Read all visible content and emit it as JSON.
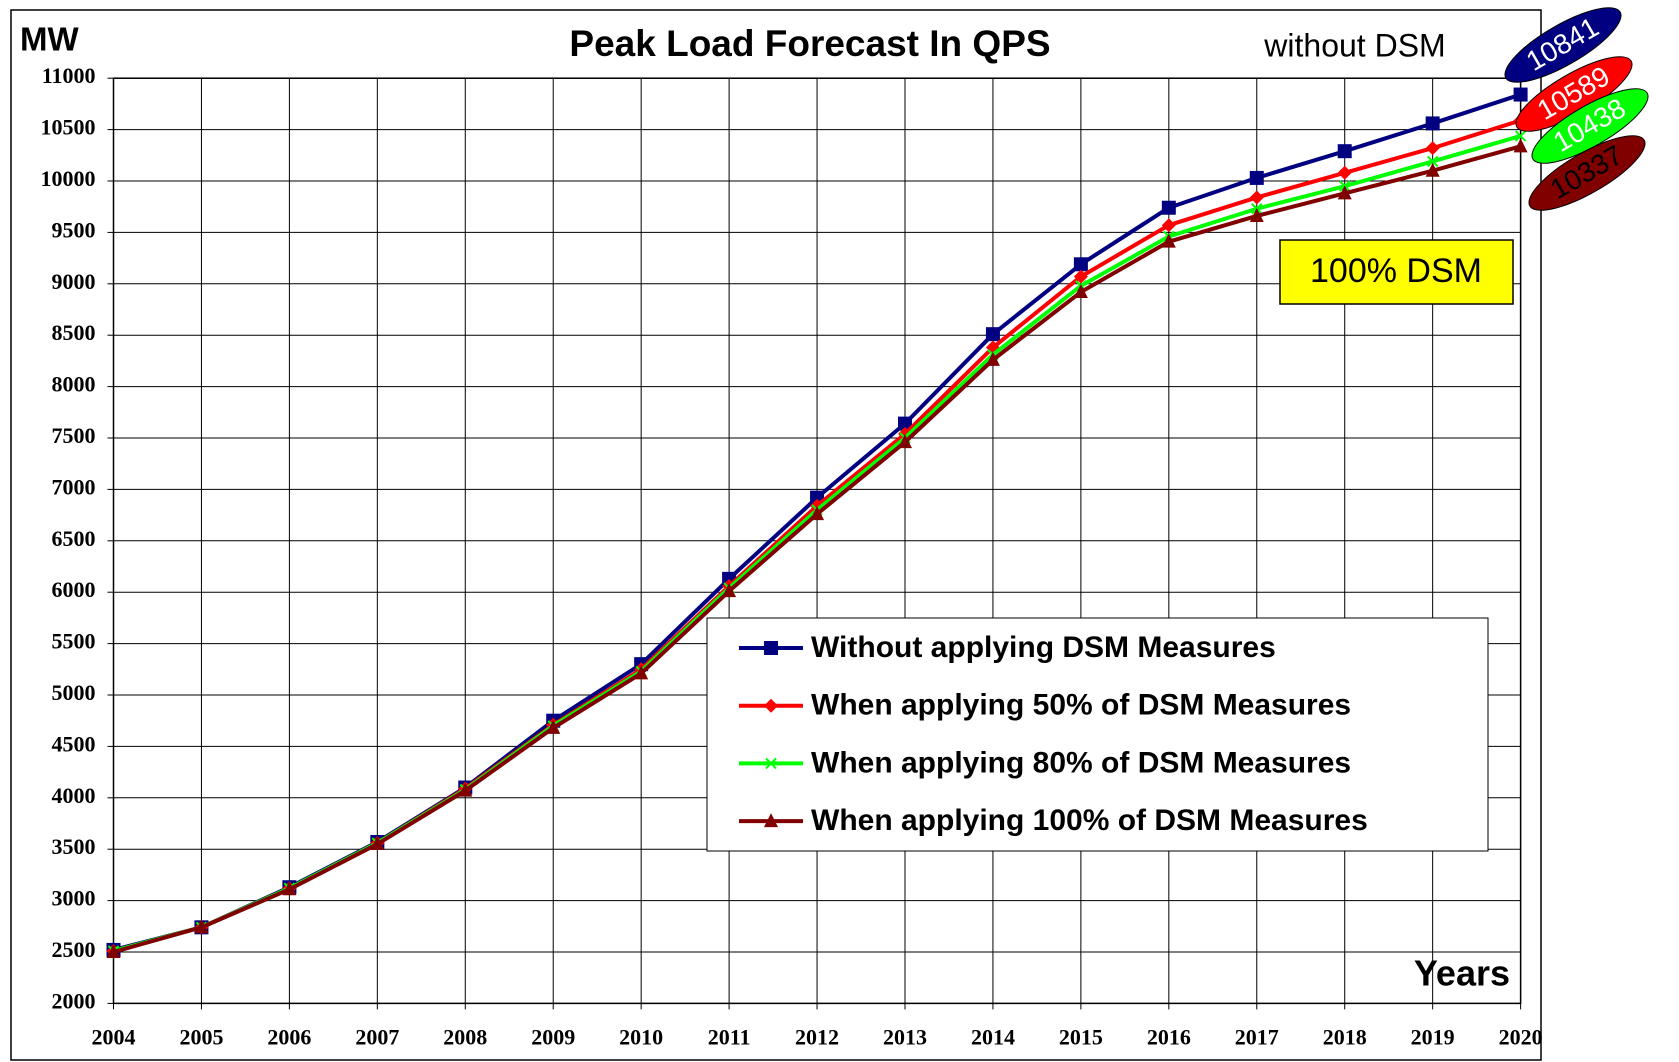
{
  "chart_data": {
    "type": "line",
    "title": "Peak Load Forecast In QPS",
    "ylabel": "MW",
    "xlabel": "Years",
    "annotations": [
      "without DSM",
      "100% DSM"
    ],
    "x": [
      2004,
      2005,
      2006,
      2007,
      2008,
      2009,
      2010,
      2011,
      2012,
      2013,
      2014,
      2015,
      2016,
      2017,
      2018,
      2019,
      2020
    ],
    "xlim": [
      2004,
      2020
    ],
    "xticks": [
      2004,
      2005,
      2006,
      2007,
      2008,
      2009,
      2010,
      2011,
      2012,
      2013,
      2014,
      2015,
      2016,
      2017,
      2018,
      2019,
      2020
    ],
    "ylim": [
      2000,
      11000
    ],
    "yticks": [
      2000,
      2500,
      3000,
      3500,
      4000,
      4500,
      5000,
      5500,
      6000,
      6500,
      7000,
      7500,
      8000,
      8500,
      9000,
      9500,
      10000,
      10500,
      11000
    ],
    "grid": true,
    "series": [
      {
        "name": "Without applying DSM Measures",
        "color": "#000080",
        "marker": "square",
        "values": [
          2520,
          2740,
          3130,
          3570,
          4100,
          4750,
          5300,
          6130,
          6920,
          7640,
          8510,
          9190,
          9740,
          10030,
          10290,
          10560,
          10841
        ]
      },
      {
        "name": "When applying 50% of DSM Measures",
        "color": "#ff0000",
        "marker": "diamond",
        "values": [
          2510,
          2740,
          3120,
          3560,
          4090,
          4710,
          5250,
          6060,
          6840,
          7540,
          8380,
          9070,
          9570,
          9840,
          10080,
          10320,
          10589
        ]
      },
      {
        "name": "When applying 80% of DSM Measures",
        "color": "#00ff00",
        "marker": "x",
        "values": [
          2510,
          2740,
          3120,
          3560,
          4080,
          4700,
          5230,
          6040,
          6800,
          7500,
          8310,
          8980,
          9460,
          9730,
          9950,
          10190,
          10438
        ]
      },
      {
        "name": "When applying 100% of DSM Measures",
        "color": "#800000",
        "marker": "triangle",
        "values": [
          2500,
          2740,
          3110,
          3550,
          4070,
          4680,
          5210,
          6010,
          6760,
          7460,
          8260,
          8920,
          9410,
          9660,
          9880,
          10100,
          10337
        ]
      }
    ]
  }
}
